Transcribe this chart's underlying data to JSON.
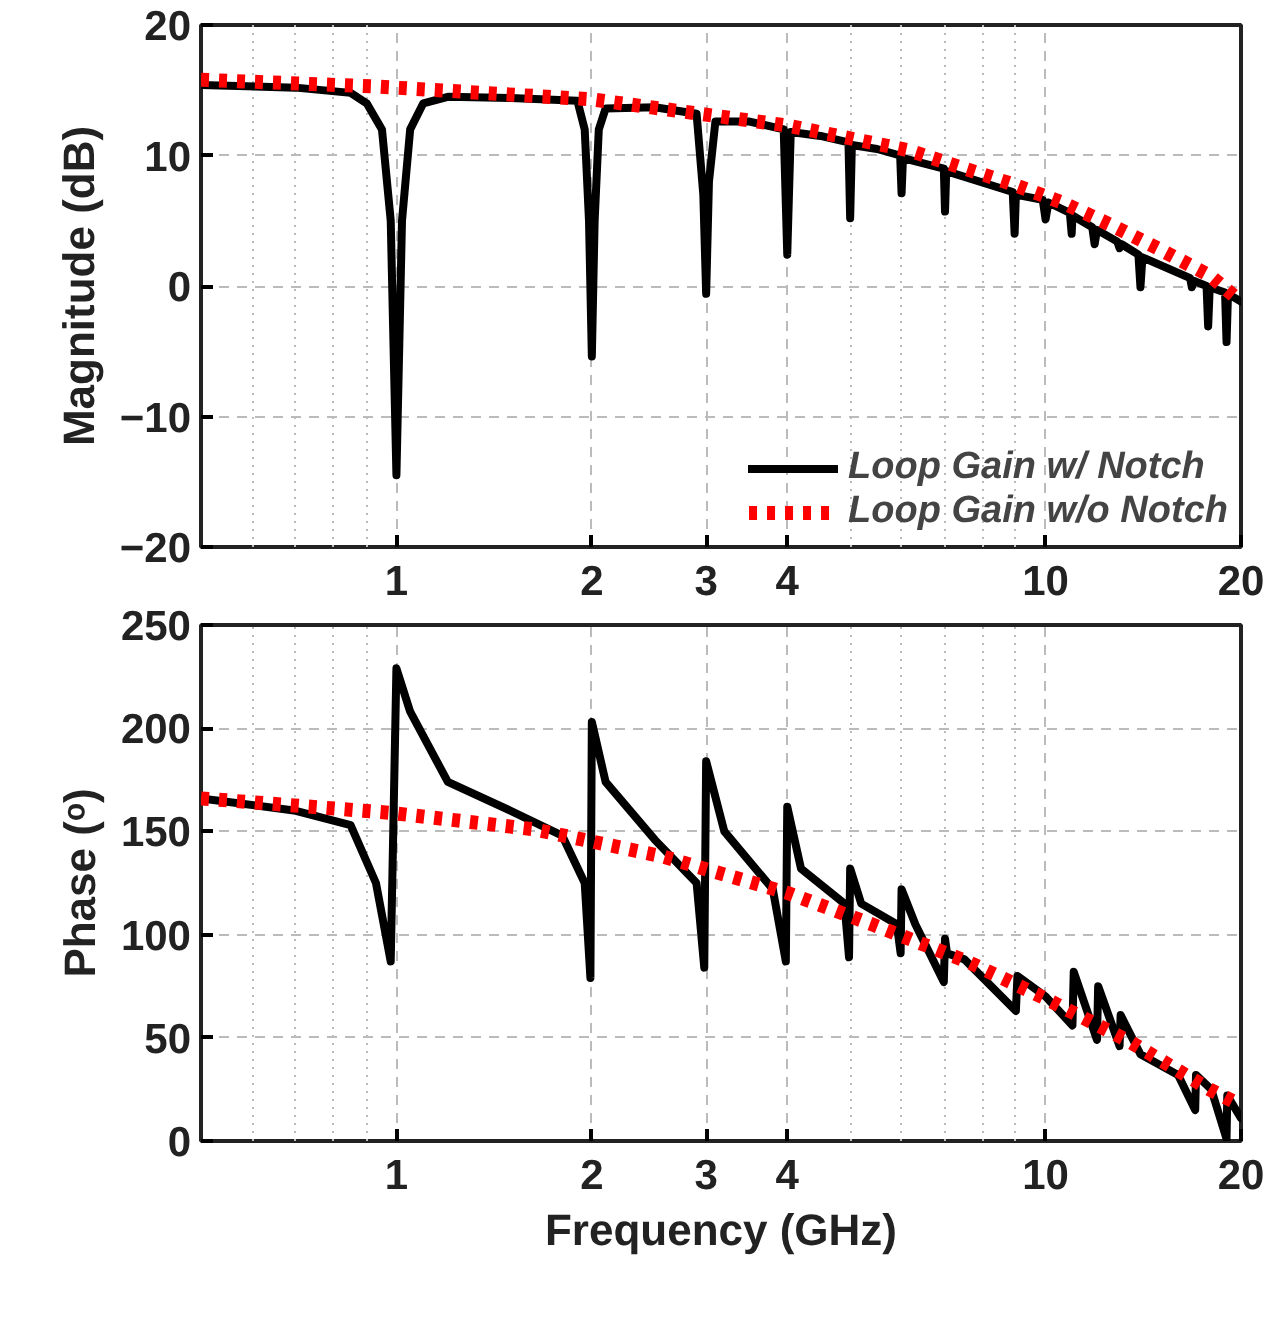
{
  "chart_data": [
    {
      "type": "line",
      "ylabel": "Magnitude (dB)",
      "xlim": [
        0.5,
        20
      ],
      "xticks": [
        1,
        2,
        3,
        4,
        10,
        20
      ],
      "ylim": [
        -20,
        20
      ],
      "yticks": [
        -20,
        -10,
        0,
        10,
        20
      ],
      "log": "x",
      "grid": true,
      "legend": "bottom right",
      "series": [
        {
          "name": "Loop Gain w/ Notch",
          "color": "#000000",
          "line_style": "solid",
          "x": [
            0.5,
            0.7,
            0.85,
            0.9,
            0.95,
            0.98,
            1.0,
            1.02,
            1.05,
            1.1,
            1.2,
            1.5,
            1.9,
            1.95,
            1.98,
            2.0,
            2.02,
            2.05,
            2.1,
            2.5,
            2.9,
            2.97,
            3.0,
            3.03,
            3.1,
            3.5,
            3.95,
            4.0,
            4.05,
            4.5,
            4.97,
            5.0,
            5.03,
            5.5,
            5.97,
            6.0,
            6.03,
            6.97,
            7.0,
            7.03,
            8.9,
            8.96,
            9.0,
            9.9,
            10.0,
            10.1,
            10.9,
            10.97,
            11.0,
            11.8,
            11.9,
            12.0,
            12.9,
            13.0,
            13.1,
            13.9,
            14.0,
            14.1,
            16.7,
            16.8,
            16.9,
            17.7,
            17.8,
            17.9,
            18.9,
            19.0,
            19.1,
            20.0
          ],
          "values": [
            15.4,
            15.2,
            14.8,
            14.0,
            12.0,
            5.0,
            -14.5,
            5.0,
            12.0,
            14.0,
            14.5,
            14.4,
            14.2,
            12.0,
            5.0,
            -5.4,
            5.0,
            12.0,
            13.6,
            13.7,
            13.2,
            7.0,
            -0.6,
            8.0,
            12.6,
            12.6,
            12.0,
            2.4,
            11.8,
            11.5,
            11.0,
            5.2,
            10.8,
            10.5,
            10.0,
            7.1,
            9.8,
            9.0,
            5.7,
            8.8,
            7.2,
            4.0,
            7.0,
            6.6,
            5.1,
            6.4,
            5.6,
            4.0,
            5.4,
            4.5,
            3.2,
            4.3,
            3.4,
            2.9,
            3.2,
            2.4,
            -0.1,
            2.2,
            0.6,
            -0.1,
            0.4,
            0.0,
            -3.1,
            -0.1,
            -0.5,
            -4.3,
            -0.6,
            -1.2
          ]
        },
        {
          "name": "Loop Gain w/o Notch",
          "color": "#ff0000",
          "line_style": "dotted",
          "x": [
            0.5,
            0.92,
            2.0,
            4.0,
            6.15,
            8.9,
            10.6,
            12.7,
            15.0,
            17.9,
            20.0
          ],
          "values": [
            15.8,
            15.3,
            14.3,
            12.3,
            10.4,
            7.8,
            6.4,
            4.6,
            2.8,
            0.8,
            -1.2
          ]
        }
      ]
    },
    {
      "type": "line",
      "ylabel": "Phase (ᵒ)",
      "xlabel": "Frequency (GHz)",
      "xlim": [
        0.5,
        20
      ],
      "xticks": [
        1,
        2,
        3,
        4,
        10,
        20
      ],
      "ylim": [
        0,
        250
      ],
      "yticks": [
        0,
        50,
        100,
        150,
        200,
        250
      ],
      "log": "x",
      "grid": true,
      "series": [
        {
          "color": "#000000",
          "line_style": "solid",
          "x": [
            0.5,
            0.7,
            0.85,
            0.93,
            0.98,
            1.0,
            1.05,
            1.2,
            1.5,
            1.8,
            1.95,
            1.99,
            2.0,
            2.1,
            2.5,
            2.9,
            2.98,
            3.0,
            3.2,
            3.8,
            3.98,
            4.0,
            4.2,
            4.9,
            4.98,
            5.0,
            5.2,
            5.9,
            5.98,
            6.0,
            6.3,
            6.97,
            7.0,
            7.05,
            7.5,
            9.0,
            9.05,
            10.0,
            11.0,
            11.05,
            12.0,
            12.05,
            13.0,
            13.05,
            14.0,
            16.0,
            17.0,
            17.05,
            18.0,
            19.0,
            19.05,
            20.0
          ],
          "values": [
            166,
            160,
            153,
            125,
            87,
            229,
            208,
            174,
            160,
            148,
            125,
            79,
            203,
            174,
            146,
            125,
            84,
            184,
            150,
            122,
            87,
            162,
            132,
            115,
            89,
            132,
            115,
            105,
            91,
            122,
            105,
            77,
            98,
            91,
            88,
            63,
            80,
            70,
            56,
            82,
            49,
            75,
            46,
            61,
            42,
            32,
            15,
            32,
            25,
            1,
            22,
            11
          ]
        },
        {
          "color": "#ff0000",
          "line_style": "dotted",
          "x": [
            0.5,
            0.98,
            1.63,
            2.56,
            4.02,
            5.4,
            7.57,
            10.0,
            13.5,
            17.9,
            19.8
          ],
          "values": [
            166,
            159,
            151,
            138,
            120,
            105,
            87,
            69,
            48,
            25,
            18
          ]
        }
      ]
    }
  ]
}
